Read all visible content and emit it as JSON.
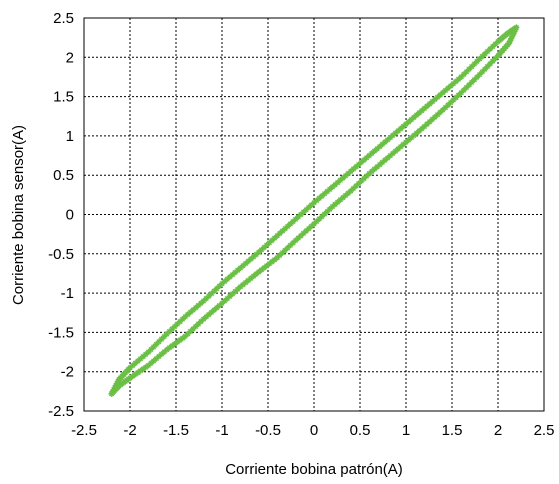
{
  "chart_data": {
    "type": "scatter",
    "title": "",
    "xlabel": "Corriente bobina patrón(A)",
    "ylabel": "Corriente bobina sensor(A)",
    "xlim": [
      -2.5,
      2.5
    ],
    "ylim": [
      -2.5,
      2.5
    ],
    "x_ticks": [
      "-2.5",
      "-2",
      "-1.5",
      "-1",
      "-0.5",
      "0",
      "0.5",
      "1",
      "1.5",
      "2",
      "2.5"
    ],
    "y_ticks": [
      "-2.5",
      "-2",
      "-1.5",
      "-1",
      "-0.5",
      "0",
      "0.5",
      "1",
      "1.5",
      "2",
      "2.5"
    ],
    "grid": true,
    "series": [
      {
        "color": "#6abf45",
        "points": [
          [
            -2.2,
            -2.28
          ],
          [
            -2.12,
            -2.1
          ],
          [
            -2.0,
            -1.95
          ],
          [
            -1.8,
            -1.75
          ],
          [
            -1.6,
            -1.52
          ],
          [
            -1.4,
            -1.3
          ],
          [
            -1.2,
            -1.1
          ],
          [
            -1.0,
            -0.88
          ],
          [
            -0.8,
            -0.68
          ],
          [
            -0.6,
            -0.48
          ],
          [
            -0.4,
            -0.27
          ],
          [
            -0.2,
            -0.06
          ],
          [
            0.0,
            0.15
          ],
          [
            0.2,
            0.35
          ],
          [
            0.4,
            0.55
          ],
          [
            0.6,
            0.75
          ],
          [
            0.8,
            0.95
          ],
          [
            1.0,
            1.15
          ],
          [
            1.2,
            1.35
          ],
          [
            1.4,
            1.55
          ],
          [
            1.6,
            1.75
          ],
          [
            1.8,
            1.98
          ],
          [
            2.0,
            2.2
          ],
          [
            2.1,
            2.3
          ],
          [
            2.2,
            2.38
          ],
          [
            2.12,
            2.18
          ],
          [
            2.0,
            2.02
          ],
          [
            1.8,
            1.78
          ],
          [
            1.6,
            1.55
          ],
          [
            1.4,
            1.33
          ],
          [
            1.2,
            1.12
          ],
          [
            1.0,
            0.92
          ],
          [
            0.8,
            0.72
          ],
          [
            0.6,
            0.52
          ],
          [
            0.4,
            0.3
          ],
          [
            0.2,
            0.1
          ],
          [
            0.0,
            -0.12
          ],
          [
            -0.2,
            -0.33
          ],
          [
            -0.4,
            -0.55
          ],
          [
            -0.6,
            -0.73
          ],
          [
            -0.8,
            -0.92
          ],
          [
            -1.0,
            -1.13
          ],
          [
            -1.2,
            -1.33
          ],
          [
            -1.4,
            -1.55
          ],
          [
            -1.6,
            -1.72
          ],
          [
            -1.8,
            -1.92
          ],
          [
            -2.0,
            -2.08
          ],
          [
            -2.12,
            -2.18
          ],
          [
            -2.2,
            -2.28
          ]
        ]
      }
    ]
  }
}
